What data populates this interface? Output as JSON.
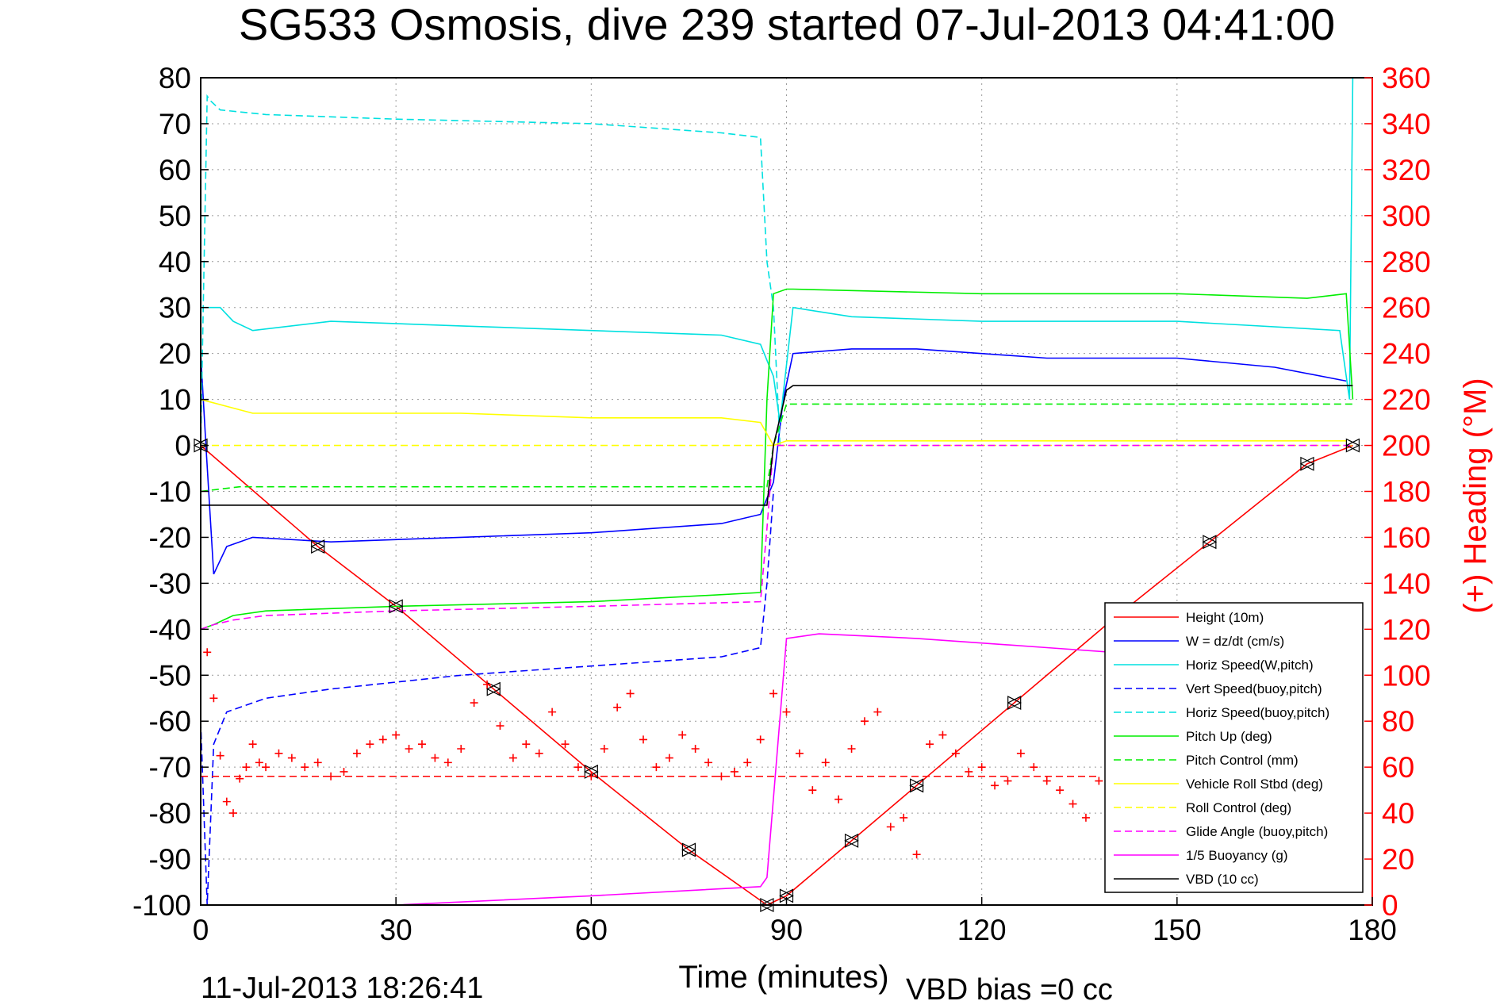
{
  "chart_data": {
    "type": "line",
    "title": "SG533 Osmosis, dive 239 started 07-Jul-2013 04:41:00",
    "xlabel": "Time (minutes)",
    "ylabel_right": "(+) Heading (°M)",
    "xlim": [
      0,
      180
    ],
    "ylim": [
      -100,
      80
    ],
    "ylim_right": [
      0,
      360
    ],
    "x_ticks": [
      "0",
      "30",
      "60",
      "90",
      "120",
      "150",
      "180"
    ],
    "y_ticks": [
      "80",
      "70",
      "60",
      "50",
      "40",
      "30",
      "20",
      "10",
      "0",
      "-10",
      "-20",
      "-30",
      "-40",
      "-50",
      "-60",
      "-70",
      "-80",
      "-90",
      "-100"
    ],
    "y_ticks_right": [
      "360",
      "340",
      "320",
      "300",
      "280",
      "260",
      "240",
      "220",
      "200",
      "180",
      "160",
      "140",
      "120",
      "100",
      "80",
      "60",
      "40",
      "20",
      "0"
    ],
    "grid": true,
    "legend_position": "bottom-right",
    "footer_date": "11-Jul-2013 18:26:41",
    "footer_note": "VBD bias =0 cc",
    "series": [
      {
        "name": "Height (10m)",
        "color": "#ff0000",
        "dash": "solid",
        "x": [
          0,
          18,
          30,
          45,
          60,
          75,
          87,
          90,
          100,
          110,
          125,
          140,
          155,
          170,
          177
        ],
        "y": [
          0,
          -22,
          -35,
          -53,
          -71,
          -88,
          -100,
          -98,
          -86,
          -74,
          -56,
          -38,
          -21,
          -4,
          0
        ]
      },
      {
        "name": "W = dz/dt (cm/s)",
        "color": "#0000ff",
        "dash": "solid",
        "x": [
          0,
          0.8,
          2,
          4,
          8,
          20,
          40,
          60,
          80,
          86,
          88,
          89.5,
          91,
          100,
          110,
          130,
          150,
          165,
          176
        ],
        "y": [
          20,
          0,
          -28,
          -22,
          -20,
          -21,
          -20,
          -19,
          -17,
          -15,
          -8,
          10,
          20,
          21,
          21,
          19,
          19,
          17,
          14
        ]
      },
      {
        "name": "Horiz Speed(W,pitch)",
        "color": "#00e0e0",
        "dash": "solid",
        "x": [
          0,
          3,
          5,
          8,
          20,
          40,
          60,
          80,
          86,
          88,
          89,
          91,
          100,
          120,
          150,
          175,
          176.5,
          177
        ],
        "y": [
          30,
          30,
          27,
          25,
          27,
          26,
          25,
          24,
          22,
          15,
          5,
          30,
          28,
          27,
          27,
          25,
          10,
          80
        ]
      },
      {
        "name": "Vert Speed(buoy,pitch)",
        "color": "#0000ff",
        "dash": "dashed",
        "x": [
          0,
          1,
          2,
          4,
          10,
          20,
          40,
          60,
          80,
          86,
          87,
          88
        ],
        "y": [
          -60,
          -100,
          -65,
          -58,
          -55,
          -53,
          -50,
          -48,
          -46,
          -44,
          -30,
          -10
        ]
      },
      {
        "name": "Horiz Speed(buoy,pitch)",
        "color": "#00e0e0",
        "dash": "dashed",
        "x": [
          0,
          1,
          1.5,
          3,
          10,
          30,
          60,
          80,
          86,
          87,
          88,
          89
        ],
        "y": [
          0,
          76,
          75,
          73,
          72,
          71,
          70,
          68,
          67,
          40,
          30,
          0
        ]
      },
      {
        "name": "Pitch Up (deg)",
        "color": "#00ee00",
        "dash": "solid",
        "x": [
          0,
          2,
          5,
          10,
          30,
          60,
          86,
          87,
          88,
          90,
          91,
          120,
          150,
          170,
          176,
          177
        ],
        "y": [
          -40,
          -39,
          -37,
          -36,
          -35,
          -34,
          -32,
          10,
          33,
          34,
          34,
          33,
          33,
          32,
          33,
          10
        ]
      },
      {
        "name": "Pitch Control (mm)",
        "color": "#00ee00",
        "dash": "dashed",
        "x": [
          0,
          6,
          87,
          88,
          90,
          177
        ],
        "y": [
          -10,
          -9,
          -9,
          0,
          9,
          9
        ]
      },
      {
        "name": "Vehicle Roll Stbd (deg)",
        "color": "#ffff00",
        "dash": "solid",
        "x": [
          0,
          8,
          20,
          40,
          60,
          80,
          86,
          88,
          90,
          120,
          150,
          170,
          176
        ],
        "y": [
          10,
          7,
          7,
          7,
          6,
          6,
          5,
          0,
          1,
          1,
          1,
          1,
          1
        ]
      },
      {
        "name": "Roll Control (deg)",
        "color": "#ffff00",
        "dash": "dashed",
        "x": [
          0,
          88,
          90,
          177
        ],
        "y": [
          0,
          0,
          0,
          0
        ]
      },
      {
        "name": "Glide Angle (buoy,pitch)",
        "color": "#ff00ff",
        "dash": "dashed",
        "x": [
          0,
          2,
          5,
          10,
          30,
          60,
          86,
          87,
          88,
          90,
          177
        ],
        "y": [
          -40,
          -39,
          -38,
          -37,
          -36,
          -35,
          -34,
          -18,
          0,
          0,
          0
        ]
      },
      {
        "name": "1/5 Buoyancy (g)",
        "color": "#ff00ff",
        "dash": "solid",
        "x": [
          30,
          60,
          86,
          87,
          90,
          95,
          110,
          130,
          140
        ],
        "y": [
          -100,
          -98,
          -96,
          -94,
          -42,
          -41,
          -42,
          -44,
          -45
        ]
      },
      {
        "name": "VBD (10 cc)",
        "color": "#000000",
        "dash": "solid",
        "x": [
          0,
          1,
          87,
          88,
          90,
          91,
          177
        ],
        "y": [
          -13,
          -13,
          -13,
          0,
          12,
          13,
          13
        ]
      }
    ],
    "heading": {
      "name": "Heading",
      "color": "#ff0000",
      "axis": "right",
      "x": [
        1,
        2,
        3,
        4,
        5,
        6,
        7,
        8,
        9,
        10,
        12,
        14,
        16,
        18,
        20,
        22,
        24,
        26,
        28,
        30,
        32,
        34,
        36,
        38,
        40,
        42,
        44,
        46,
        48,
        50,
        52,
        54,
        56,
        58,
        60,
        62,
        64,
        66,
        68,
        70,
        72,
        74,
        76,
        78,
        80,
        82,
        84,
        86,
        88,
        90,
        92,
        94,
        96,
        98,
        100,
        102,
        104,
        106,
        108,
        110,
        112,
        114,
        116,
        118,
        120,
        122,
        124,
        126,
        128,
        130,
        132,
        134,
        136,
        138
      ],
      "y": [
        110,
        90,
        65,
        45,
        40,
        55,
        60,
        70,
        62,
        60,
        66,
        64,
        60,
        62,
        56,
        58,
        66,
        70,
        72,
        74,
        68,
        70,
        64,
        62,
        68,
        88,
        96,
        78,
        64,
        70,
        66,
        84,
        70,
        60,
        56,
        68,
        86,
        92,
        72,
        60,
        64,
        74,
        68,
        62,
        56,
        58,
        62,
        72,
        92,
        84,
        66,
        50,
        62,
        46,
        68,
        80,
        84,
        34,
        38,
        22,
        70,
        74,
        66,
        58,
        60,
        52,
        54,
        66,
        60,
        54,
        50,
        44,
        38,
        54
      ]
    },
    "heading_reference": {
      "value": 56,
      "color": "#ff0000",
      "dash": "dashed",
      "axis": "right"
    }
  }
}
